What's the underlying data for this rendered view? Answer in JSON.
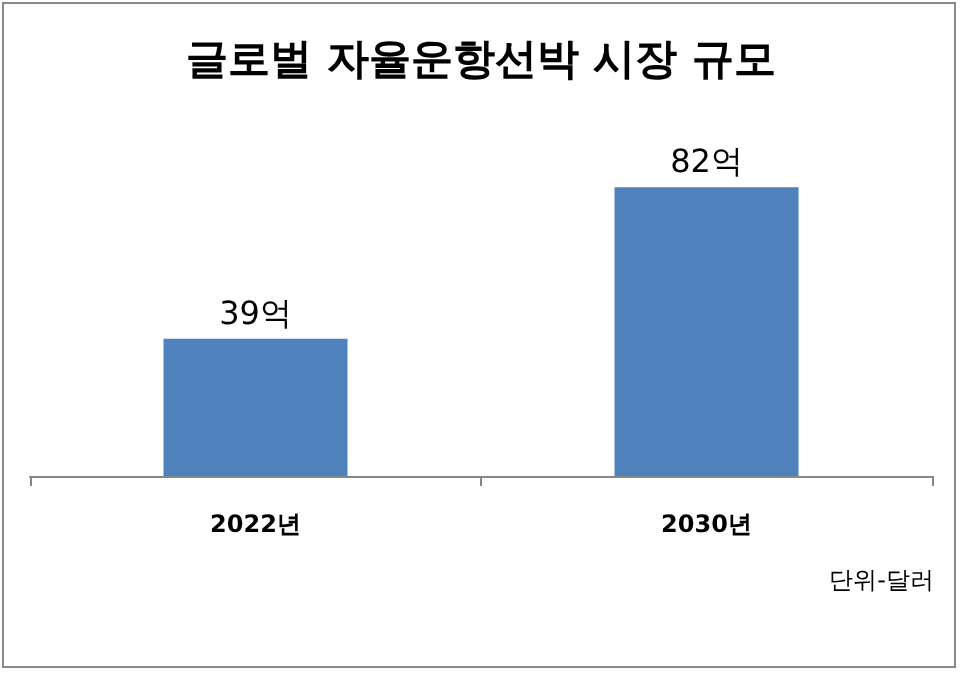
{
  "chart_data": {
    "type": "bar",
    "title": "글로벌 자율운항선박 시장 규모",
    "categories": [
      "2022년",
      "2030년"
    ],
    "values": [
      39,
      82
    ],
    "color": "#4f81bd",
    "value_labels": [
      "39억",
      "82억"
    ],
    "annotations": [
      "단위-달러"
    ],
    "tick_labels": "x"
  }
}
